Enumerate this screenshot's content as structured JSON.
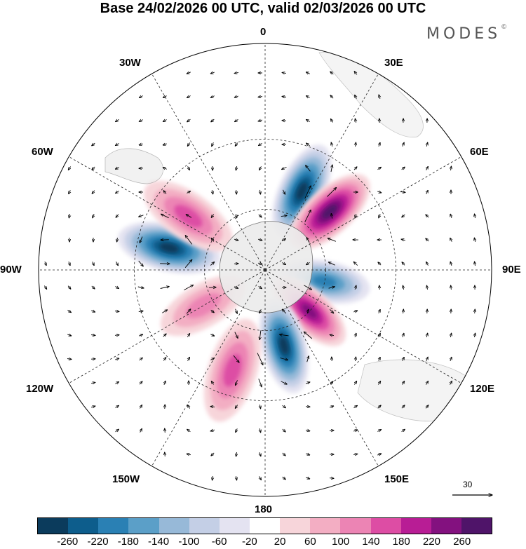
{
  "header": {
    "title": "Base 24/02/2026 00 UTC, valid 02/03/2026 00 UTC"
  },
  "brand": {
    "name": "MODES",
    "mark": "©"
  },
  "map": {
    "projection": "south polar stereographic",
    "longitude_labels": [
      "0",
      "30E",
      "60E",
      "90E",
      "120E",
      "150E",
      "180",
      "150W",
      "120W",
      "90W",
      "60W",
      "30W"
    ]
  },
  "vector_scale": {
    "reference_value": "30"
  },
  "colorbar": {
    "tick_labels": [
      "-260",
      "-220",
      "-180",
      "-140",
      "-100",
      "-60",
      "-20",
      "20",
      "60",
      "100",
      "140",
      "180",
      "220",
      "260"
    ],
    "colors": [
      "#0b3b5c",
      "#0d5d8c",
      "#2a80b4",
      "#5b9fc8",
      "#97b9d8",
      "#c4cfe6",
      "#e4e3f1",
      "#ffffff",
      "#f7d5da",
      "#f3aec3",
      "#ec84b4",
      "#dd4da4",
      "#b81d95",
      "#83117f",
      "#4f1469"
    ]
  },
  "anomalies": [
    {
      "sign": "negative",
      "peak": -260,
      "lon": 25,
      "lat": -48
    },
    {
      "sign": "positive",
      "peak": 260,
      "lon": 48,
      "lat": -48
    },
    {
      "sign": "negative",
      "peak": -200,
      "lon": 101,
      "lat": -60
    },
    {
      "sign": "positive",
      "peak": 240,
      "lon": 133,
      "lat": -60
    },
    {
      "sign": "negative",
      "peak": -260,
      "lon": 166,
      "lat": -52
    },
    {
      "sign": "positive",
      "peak": 140,
      "lon": -162,
      "lat": -40
    },
    {
      "sign": "positive",
      "peak": 100,
      "lon": -120,
      "lat": -55
    },
    {
      "sign": "negative",
      "peak": -260,
      "lon": -77,
      "lat": -43
    },
    {
      "sign": "positive",
      "peak": 140,
      "lon": -55,
      "lat": -45
    }
  ]
}
